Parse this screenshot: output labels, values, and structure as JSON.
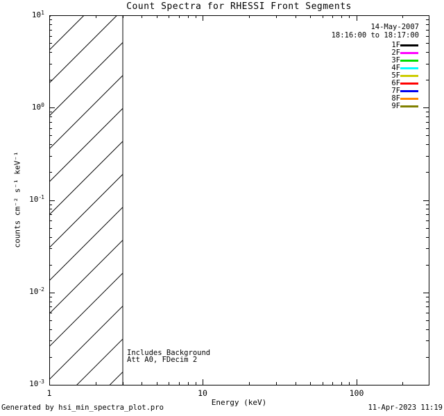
{
  "title": "Count Spectra for RHESSI Front Segments",
  "header": {
    "date": "14-May-2007",
    "time_range": "18:16:00 to 18:17:00"
  },
  "legend": {
    "position": "upper right",
    "entries": [
      {
        "label": "1F",
        "color": "#000000"
      },
      {
        "label": "2F",
        "color": "#ff00ff"
      },
      {
        "label": "3F",
        "color": "#00dd00"
      },
      {
        "label": "4F",
        "color": "#00ffff"
      },
      {
        "label": "5F",
        "color": "#cccc00"
      },
      {
        "label": "6F",
        "color": "#ff0000"
      },
      {
        "label": "7F",
        "color": "#0000ee"
      },
      {
        "label": "8F",
        "color": "#ff8800"
      },
      {
        "label": "9F",
        "color": "#808000"
      }
    ]
  },
  "axes": {
    "x": {
      "label": "Energy (keV)",
      "ticks": [
        "1",
        "10",
        "100"
      ]
    },
    "y": {
      "label": "counts cm⁻² s⁻¹ keV⁻¹",
      "ticks": [
        {
          "base": "10",
          "exp": "1"
        },
        {
          "base": "10",
          "exp": "0"
        },
        {
          "base": "10",
          "exp": "-1"
        },
        {
          "base": "10",
          "exp": "-2"
        },
        {
          "base": "10",
          "exp": "-3"
        }
      ]
    }
  },
  "annotations": {
    "line1": "Includes_Background",
    "line2": "Att A0, FDecim 2"
  },
  "footer": {
    "left": "Generated by hsi_min_spectra_plot.pro",
    "right": "11-Apr-2023 11:19"
  },
  "chart_data": {
    "type": "line",
    "title": "Count Spectra for RHESSI Front Segments",
    "xlabel": "Energy (keV)",
    "ylabel": "counts cm^-2 s^-1 keV^-1",
    "xscale": "log",
    "yscale": "log",
    "xlim": [
      1,
      300
    ],
    "ylim": [
      0.001,
      10
    ],
    "x_ticks": [
      1,
      10,
      100
    ],
    "y_ticks": [
      10,
      1,
      0.1,
      0.01,
      0.001
    ],
    "grid": false,
    "legend_position": "upper right",
    "series": [
      {
        "name": "1F",
        "color": "#000000",
        "values": []
      },
      {
        "name": "2F",
        "color": "#ff00ff",
        "values": []
      },
      {
        "name": "3F",
        "color": "#00dd00",
        "values": []
      },
      {
        "name": "4F",
        "color": "#00ffff",
        "values": []
      },
      {
        "name": "5F",
        "color": "#cccc00",
        "values": []
      },
      {
        "name": "6F",
        "color": "#ff0000",
        "values": []
      },
      {
        "name": "7F",
        "color": "#0000ee",
        "values": []
      },
      {
        "name": "8F",
        "color": "#ff8800",
        "values": []
      },
      {
        "name": "9F",
        "color": "#808000",
        "values": []
      }
    ],
    "note": "No spectra curves are drawn in the plot area; only axes, legend and a hatched region are visible.",
    "hatched_region": {
      "x_start": 1,
      "x_end": 3,
      "style": "45-degree diagonal line fill, bounded by vertical line at 3 keV"
    },
    "annotations": [
      "14-May-2007",
      "18:16:00 to 18:17:00",
      "Includes_Background",
      "Att A0, FDecim 2"
    ]
  }
}
